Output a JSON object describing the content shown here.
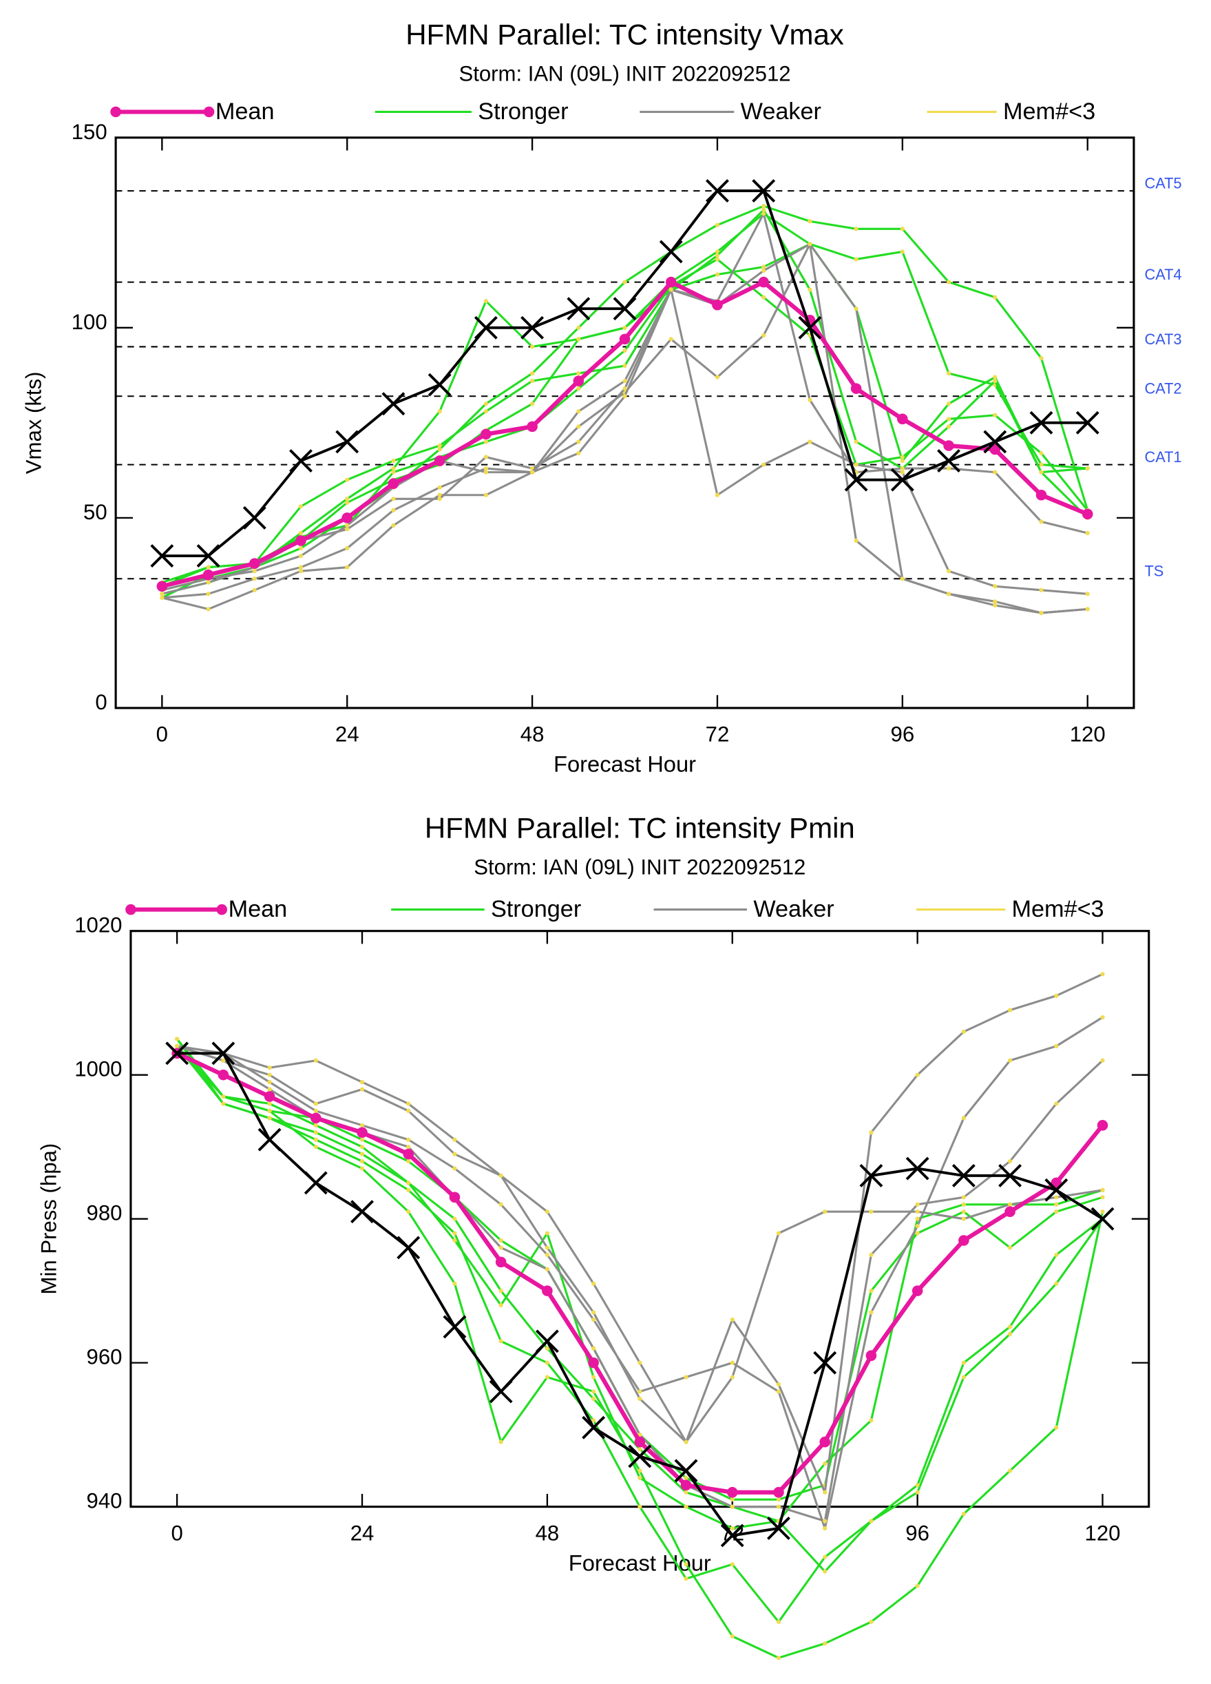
{
  "chart_data": [
    {
      "type": "line",
      "title": "HFMN Parallel: TC intensity Vmax",
      "subtitle": "Storm: IAN (09L) INIT 2022092512",
      "x_label": "Forecast Hour",
      "y_label": "Vmax (kts)",
      "x": [
        0,
        6,
        12,
        18,
        24,
        30,
        36,
        42,
        48,
        54,
        60,
        66,
        72,
        78,
        84,
        90,
        96,
        102,
        108,
        114,
        120
      ],
      "xlim": [
        -6,
        126
      ],
      "xticks": [
        0,
        24,
        48,
        72,
        96,
        120
      ],
      "ylim": [
        0,
        150
      ],
      "yticks": [
        0,
        50,
        100,
        150
      ],
      "thresholds": [
        {
          "label": "TS",
          "value": 34
        },
        {
          "label": "CAT1",
          "value": 64
        },
        {
          "label": "CAT2",
          "value": 82
        },
        {
          "label": "CAT3",
          "value": 95
        },
        {
          "label": "CAT4",
          "value": 112
        },
        {
          "label": "CAT5",
          "value": 136
        }
      ],
      "series": [
        {
          "name": "Mean",
          "color": "#e8179f",
          "values": [
            32,
            35,
            38,
            44,
            50,
            59,
            65,
            72,
            74,
            86,
            97,
            112,
            106,
            112,
            102,
            84,
            76,
            69,
            68,
            56,
            51
          ]
        },
        {
          "name": "Stronger",
          "color": "#22dd22",
          "members": [
            [
              30,
              33,
              37,
              42,
              50,
              58,
              68,
              80,
              88,
              100,
              112,
              120,
              127,
              132,
              128,
              126,
              126,
              112,
              108,
              92,
              52
            ],
            [
              31,
              34,
              37,
              46,
              55,
              63,
              78,
              107,
              95,
              97,
              100,
              112,
              120,
              130,
              122,
              118,
              120,
              88,
              85,
              64,
              63
            ],
            [
              32,
              37,
              38,
              53,
              60,
              65,
              69,
              78,
              86,
              88,
              90,
              110,
              114,
              116,
              122,
              105,
              65,
              80,
              87,
              62,
              63
            ],
            [
              33,
              37,
              38,
              45,
              48,
              62,
              66,
              70,
              74,
              84,
              94,
              111,
              118,
              108,
              98,
              64,
              66,
              76,
              77,
              67,
              52
            ],
            [
              29,
              35,
              38,
              44,
              54,
              60,
              64,
              73,
              80,
              97,
              100,
              110,
              119,
              131,
              110,
              70,
              63,
              74,
              86,
              62,
              50
            ]
          ]
        },
        {
          "name": "Weaker",
          "color": "#8c8c8c",
          "members": [
            [
              29,
              26,
              31,
              36,
              37,
              48,
              56,
              56,
              62,
              74,
              83,
              97,
              87,
              98,
              122,
              44,
              34,
              30,
              28,
              25,
              26
            ],
            [
              29,
              30,
              34,
              37,
              42,
              52,
              58,
              63,
              62,
              67,
              82,
              110,
              56,
              64,
              70,
              64,
              62,
              36,
              32,
              31,
              30
            ],
            [
              30,
              33,
              37,
              44,
              47,
              55,
              55,
              66,
              63,
              70,
              84,
              110,
              107,
              130,
              81,
              62,
              63,
              63,
              62,
              49,
              46
            ],
            [
              31,
              34,
              36,
              40,
              48,
              58,
              65,
              62,
              62,
              78,
              86,
              110,
              106,
              115,
              122,
              105,
              34,
              30,
              27,
              25,
              26
            ]
          ]
        },
        {
          "name": "Mem#<3",
          "color": "#f0dc50"
        },
        {
          "color": "#000000",
          "values": [
            40,
            40,
            50,
            65,
            70,
            80,
            85,
            100,
            100,
            105,
            105,
            120,
            136,
            136,
            100,
            60,
            60,
            65,
            70,
            75,
            75
          ]
        }
      ]
    },
    {
      "type": "line",
      "title": "HFMN Parallel: TC intensity Pmin",
      "subtitle": "Storm: IAN (09L) INIT 2022092512",
      "x_label": "Forecast Hour",
      "y_label": "Min Press (hpa)",
      "x": [
        0,
        6,
        12,
        18,
        24,
        30,
        36,
        42,
        48,
        54,
        60,
        66,
        72,
        78,
        84,
        90,
        96,
        102,
        108,
        114,
        120
      ],
      "xlim": [
        -6,
        126
      ],
      "xticks": [
        0,
        24,
        48,
        72,
        96,
        120
      ],
      "ylim": [
        940,
        1020
      ],
      "yticks": [
        940,
        960,
        980,
        1000,
        1020
      ],
      "series": [
        {
          "name": "Mean",
          "color": "#e8179f",
          "values": [
            1003,
            1000,
            997,
            994,
            992,
            989,
            983,
            974,
            970,
            960,
            949,
            943,
            942,
            942,
            949,
            961,
            970,
            977,
            981,
            985,
            993
          ]
        },
        {
          "name": "Stronger",
          "color": "#22dd22",
          "members": [
            [
              1005,
              997,
              995,
              990,
              987,
              981,
              971,
              949,
              958,
              956,
              945,
              932,
              922,
              919,
              921,
              924,
              929,
              939,
              945,
              951,
              981
            ],
            [
              1005,
              996,
              994,
              991,
              988,
              984,
              978,
              963,
              960,
              952,
              940,
              930,
              932,
              924,
              933,
              938,
              942,
              958,
              964,
              971,
              980
            ],
            [
              1004,
              997,
              996,
              993,
              990,
              985,
              980,
              970,
              962,
              955,
              948,
              942,
              940,
              938,
              931,
              938,
              943,
              960,
              965,
              975,
              980
            ],
            [
              1004,
              996,
              994,
              992,
              989,
              985,
              977,
              968,
              978,
              958,
              944,
              940,
              937,
              938,
              946,
              952,
              980,
              982,
              982,
              982,
              984
            ],
            [
              1004,
              997,
              995,
              994,
              991,
              988,
              983,
              977,
              973,
              962,
              950,
              944,
              941,
              941,
              943,
              970,
              978,
              981,
              976,
              981,
              983
            ]
          ]
        },
        {
          "name": "Weaker",
          "color": "#8c8c8c",
          "members": [
            [
              1004,
              1003,
              1001,
              1002,
              999,
              996,
              991,
              986,
              981,
              971,
              960,
              949,
              958,
              978,
              981,
              981,
              981,
              980,
              982,
              983,
              984
            ],
            [
              1004,
              1002,
              1000,
              996,
              998,
              995,
              989,
              986,
              976,
              967,
              955,
              949,
              966,
              957,
              942,
              992,
              1000,
              1006,
              1009,
              1011,
              1014
            ],
            [
              1004,
              1003,
              999,
              995,
              993,
              991,
              987,
              982,
              975,
              966,
              956,
              958,
              960,
              956,
              937,
              967,
              979,
              994,
              1002,
              1004,
              1008
            ],
            [
              1004,
              1002,
              998,
              994,
              992,
              990,
              983,
              976,
              973,
              962,
              950,
              943,
              940,
              940,
              938,
              975,
              982,
              983,
              988,
              996,
              1002
            ]
          ]
        },
        {
          "name": "Mem#<3",
          "color": "#f0dc50"
        },
        {
          "color": "#000000",
          "values": [
            1003,
            1003,
            991,
            985,
            981,
            976,
            965,
            956,
            963,
            951,
            947,
            945,
            936,
            937,
            960,
            986,
            987,
            986,
            986,
            984,
            980
          ]
        }
      ]
    }
  ]
}
